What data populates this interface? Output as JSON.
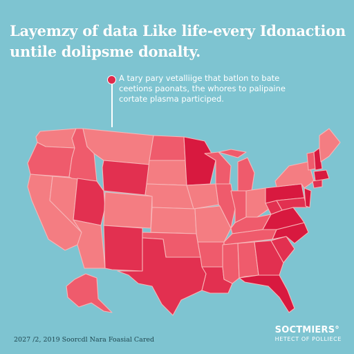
{
  "title": {
    "line1": "Layemzy of data Like life-every Idonaction",
    "line2": "untile dolipsme donalty."
  },
  "annotation": {
    "line1": "A tary pary vetalliige that batlon to bate",
    "line2": "ceetions paonats, the whores to palipaine",
    "line3": "cortate plasma participed."
  },
  "footer": {
    "source": "2027 /2, 2019 Soorcdl Nara Foasial Cared"
  },
  "brand": {
    "name": "SOCTMIERS°",
    "tagline": "HETECT OF POLLIECE"
  },
  "colors": {
    "background": "#7ec4d1",
    "light": "#f47d82",
    "medium": "#ef5b6c",
    "dark": "#e23050",
    "darkest": "#d8193f",
    "annotation_dot": "#e0294a",
    "border": "#f7b6b8"
  }
}
